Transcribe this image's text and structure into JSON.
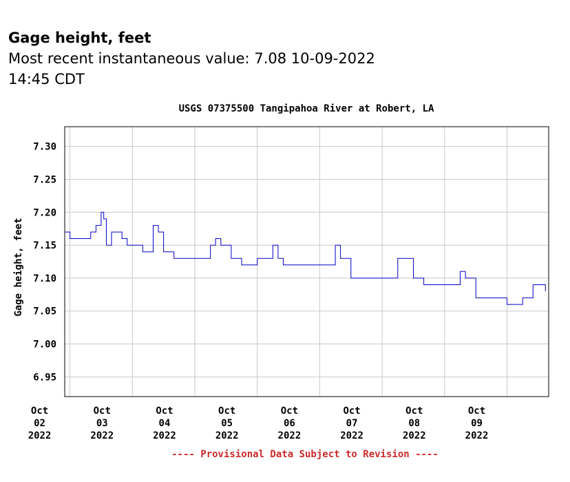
{
  "header": {
    "title": "Gage height, feet",
    "recent_prefix": "Most recent instantaneous value:",
    "recent_value": "7.08",
    "recent_date": "10-09-2022",
    "recent_time": "14:45",
    "recent_tz": "CDT"
  },
  "colors": {
    "line": "#0000c8",
    "grid": "#c8c8c8",
    "footer": "#cc2a2a"
  },
  "chart_data": {
    "type": "line",
    "title": "USGS 07375500 Tangipahoa River at Robert, LA",
    "ylabel": "Gage height, feet",
    "xlabel": "",
    "ylim": [
      6.92,
      7.33
    ],
    "yticks": [
      "6.95",
      "7.00",
      "7.05",
      "7.10",
      "7.15",
      "7.20",
      "7.25",
      "7.30"
    ],
    "xlim": [
      "2022-10-01T22:00",
      "2022-10-09T16:00"
    ],
    "xticks": [
      {
        "date": "2022-10-02",
        "month": "Oct",
        "day": "02",
        "year": "2022"
      },
      {
        "date": "2022-10-03",
        "month": "Oct",
        "day": "03",
        "year": "2022"
      },
      {
        "date": "2022-10-04",
        "month": "Oct",
        "day": "04",
        "year": "2022"
      },
      {
        "date": "2022-10-05",
        "month": "Oct",
        "day": "05",
        "year": "2022"
      },
      {
        "date": "2022-10-06",
        "month": "Oct",
        "day": "06",
        "year": "2022"
      },
      {
        "date": "2022-10-07",
        "month": "Oct",
        "day": "07",
        "year": "2022"
      },
      {
        "date": "2022-10-08",
        "month": "Oct",
        "day": "08",
        "year": "2022"
      },
      {
        "date": "2022-10-09",
        "month": "Oct",
        "day": "09",
        "year": "2022"
      }
    ],
    "grid": true,
    "series": [
      {
        "points": [
          [
            "2022-10-01T22:00",
            7.17
          ],
          [
            "2022-10-02T00:00",
            7.16
          ],
          [
            "2022-10-02T04:00",
            7.16
          ],
          [
            "2022-10-02T08:00",
            7.17
          ],
          [
            "2022-10-02T10:00",
            7.18
          ],
          [
            "2022-10-02T12:00",
            7.2
          ],
          [
            "2022-10-02T13:00",
            7.19
          ],
          [
            "2022-10-02T14:00",
            7.15
          ],
          [
            "2022-10-02T16:00",
            7.17
          ],
          [
            "2022-10-02T18:00",
            7.17
          ],
          [
            "2022-10-02T20:00",
            7.16
          ],
          [
            "2022-10-02T22:00",
            7.15
          ],
          [
            "2022-10-03T00:00",
            7.15
          ],
          [
            "2022-10-03T04:00",
            7.14
          ],
          [
            "2022-10-03T08:00",
            7.18
          ],
          [
            "2022-10-03T10:00",
            7.17
          ],
          [
            "2022-10-03T12:00",
            7.14
          ],
          [
            "2022-10-03T16:00",
            7.13
          ],
          [
            "2022-10-04T00:00",
            7.13
          ],
          [
            "2022-10-04T06:00",
            7.15
          ],
          [
            "2022-10-04T08:00",
            7.16
          ],
          [
            "2022-10-04T10:00",
            7.15
          ],
          [
            "2022-10-04T14:00",
            7.13
          ],
          [
            "2022-10-04T18:00",
            7.12
          ],
          [
            "2022-10-05T00:00",
            7.13
          ],
          [
            "2022-10-05T06:00",
            7.15
          ],
          [
            "2022-10-05T08:00",
            7.13
          ],
          [
            "2022-10-05T10:00",
            7.12
          ],
          [
            "2022-10-05T16:00",
            7.12
          ],
          [
            "2022-10-06T00:00",
            7.12
          ],
          [
            "2022-10-06T06:00",
            7.15
          ],
          [
            "2022-10-06T08:00",
            7.13
          ],
          [
            "2022-10-06T12:00",
            7.1
          ],
          [
            "2022-10-06T18:00",
            7.1
          ],
          [
            "2022-10-07T00:00",
            7.1
          ],
          [
            "2022-10-07T06:00",
            7.13
          ],
          [
            "2022-10-07T08:00",
            7.13
          ],
          [
            "2022-10-07T12:00",
            7.1
          ],
          [
            "2022-10-07T16:00",
            7.09
          ],
          [
            "2022-10-08T00:00",
            7.09
          ],
          [
            "2022-10-08T06:00",
            7.11
          ],
          [
            "2022-10-08T08:00",
            7.1
          ],
          [
            "2022-10-08T12:00",
            7.07
          ],
          [
            "2022-10-08T18:00",
            7.07
          ],
          [
            "2022-10-09T00:00",
            7.06
          ],
          [
            "2022-10-09T06:00",
            7.07
          ],
          [
            "2022-10-09T10:00",
            7.09
          ],
          [
            "2022-10-09T14:45",
            7.08
          ]
        ]
      }
    ]
  },
  "footer": {
    "note": "---- Provisional Data Subject to Revision ----"
  }
}
